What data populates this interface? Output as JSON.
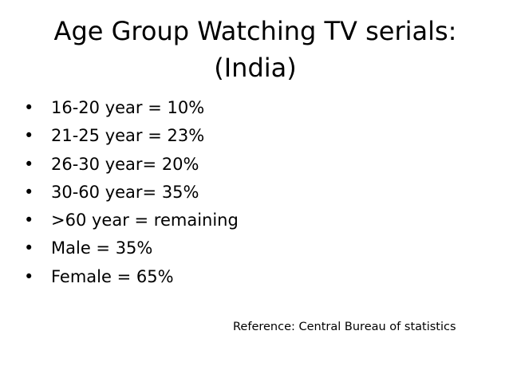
{
  "slide": {
    "title_line1": "Age Group Watching TV serials:",
    "title_line2": "(India)",
    "bullet_glyph": "•",
    "bullets": [
      "16-20 year = 10%",
      "21-25 year = 23%",
      "26-30 year= 20%",
      "30-60 year= 35%",
      ">60 year = remaining",
      "Male = 35%",
      "Female = 65%"
    ],
    "reference": "Reference: Central Bureau of statistics"
  }
}
